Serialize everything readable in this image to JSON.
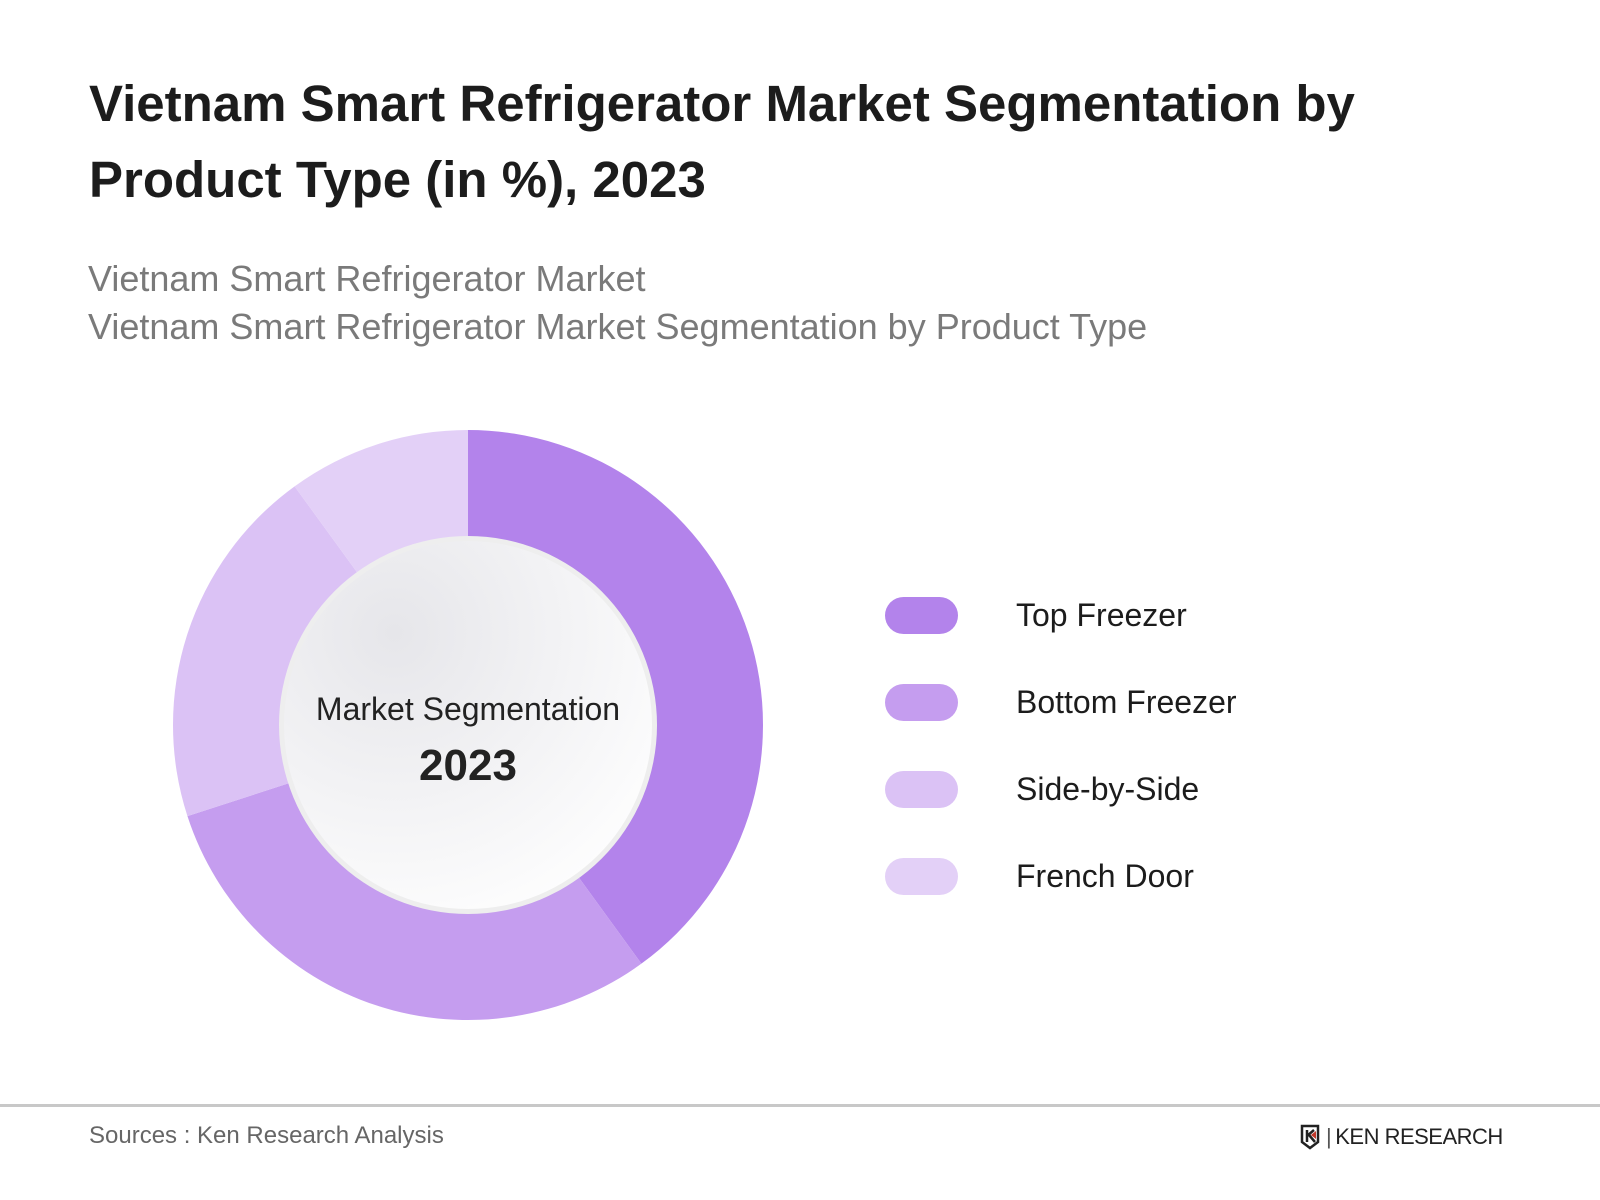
{
  "title": "Vietnam Smart Refrigerator Market Segmentation by Product Type (in %), 2023",
  "subtitle_lines": [
    "Vietnam Smart Refrigerator Market",
    "Vietnam Smart Refrigerator Market Segmentation by Product Type"
  ],
  "chart_data": {
    "type": "pie",
    "variant": "donut",
    "title": "Vietnam Smart Refrigerator Market Segmentation by Product Type (in %), 2023",
    "center_label": "Market Segmentation",
    "center_year": "2023",
    "categories": [
      "Top Freezer",
      "Bottom Freezer",
      "Side-by-Side",
      "French Door"
    ],
    "values": [
      40,
      30,
      20,
      10
    ],
    "colors": [
      "#b383eb",
      "#c59def",
      "#dbc2f5",
      "#e3d0f7"
    ],
    "legend_placement": "right"
  },
  "footer": {
    "source": "Sources : Ken Research Analysis",
    "logo_text": "KEN RESEARCH"
  }
}
